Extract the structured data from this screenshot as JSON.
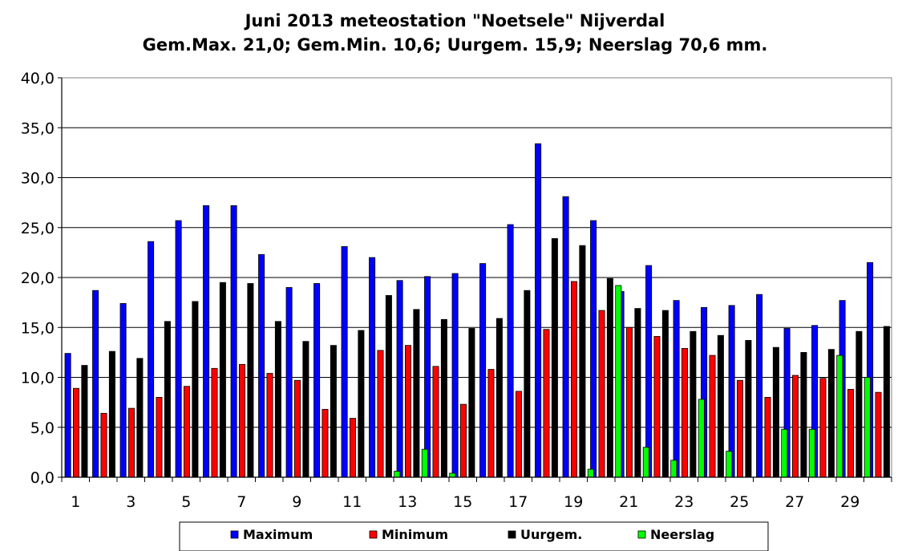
{
  "chart_data": {
    "type": "bar",
    "title": "Juni 2013 meteostation \"Noetsele\" Nijverdal",
    "subtitle": "Gem.Max. 21,0;  Gem.Min. 10,6;  Uurgem. 15,9;  Neerslag 70,6 mm.",
    "categories": [
      "1",
      "2",
      "3",
      "4",
      "5",
      "6",
      "7",
      "8",
      "9",
      "10",
      "11",
      "12",
      "13",
      "14",
      "15",
      "16",
      "17",
      "18",
      "19",
      "20",
      "21",
      "22",
      "23",
      "24",
      "25",
      "26",
      "27",
      "28",
      "29",
      "30"
    ],
    "x_tick_labels": [
      "1",
      "3",
      "5",
      "7",
      "9",
      "11",
      "13",
      "15",
      "17",
      "19",
      "21",
      "23",
      "25",
      "27",
      "29"
    ],
    "y_tick_labels": [
      "0,0",
      "5,0",
      "10,0",
      "15,0",
      "20,0",
      "25,0",
      "30,0",
      "35,0",
      "40,0"
    ],
    "ylim": [
      0,
      40
    ],
    "grid": true,
    "legend_position": "bottom",
    "series": [
      {
        "name": "Maximum",
        "color": "#0000ff",
        "values": [
          12.4,
          18.7,
          17.4,
          23.6,
          25.7,
          27.2,
          27.2,
          22.3,
          19.0,
          19.4,
          23.1,
          22.0,
          19.7,
          20.1,
          20.4,
          21.4,
          25.3,
          33.4,
          28.1,
          25.7,
          18.6,
          21.2,
          17.7,
          17.0,
          17.2,
          18.3,
          14.9,
          15.2,
          17.7,
          21.5
        ]
      },
      {
        "name": "Minimum",
        "color": "#ff0000",
        "values": [
          8.9,
          6.4,
          6.9,
          8.0,
          9.1,
          10.9,
          11.3,
          10.4,
          9.7,
          6.8,
          5.9,
          12.7,
          13.2,
          11.1,
          7.3,
          10.8,
          8.6,
          14.8,
          19.6,
          16.7,
          15.0,
          14.1,
          12.9,
          12.2,
          9.7,
          8.0,
          10.2,
          9.9,
          8.8,
          8.5
        ]
      },
      {
        "name": "Uurgem.",
        "color": "#000000",
        "values": [
          11.2,
          12.6,
          11.9,
          15.6,
          17.6,
          19.5,
          19.4,
          15.6,
          13.6,
          13.2,
          14.7,
          18.2,
          16.8,
          15.8,
          14.9,
          15.9,
          18.7,
          23.9,
          23.2,
          19.9,
          16.9,
          16.7,
          14.6,
          14.2,
          13.7,
          13.0,
          12.5,
          12.8,
          14.6,
          15.1
        ]
      },
      {
        "name": "Neerslag",
        "color": "#00ff00",
        "values": [
          0,
          0,
          0,
          0,
          0,
          0,
          0,
          0,
          0,
          0,
          0,
          0.6,
          2.8,
          0.4,
          0,
          0,
          0,
          0,
          0.8,
          19.2,
          3.0,
          1.7,
          7.8,
          2.6,
          0,
          4.8,
          4.8,
          12.2,
          10.0,
          0
        ]
      }
    ]
  }
}
